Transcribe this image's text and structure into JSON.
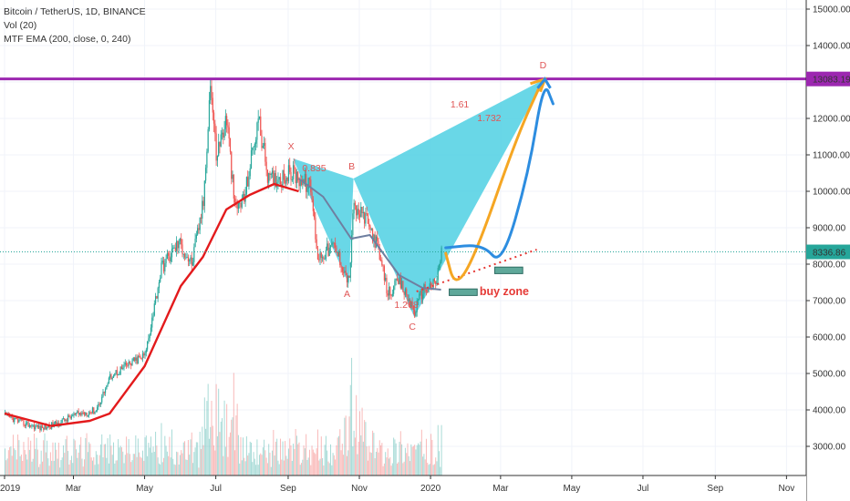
{
  "legend": {
    "symbol": "Bitcoin / TetherUS, 1D, BINANCE",
    "volume": "Vol (20)",
    "ema": "MTF EMA (200, close, 0, 240)"
  },
  "price_tags": {
    "resistance": "13083.19",
    "last": "8336.86"
  },
  "colors": {
    "candle_up": "#26a69a",
    "candle_down": "#ef5350",
    "ema": "#e31a1c",
    "sma": "#6f7fa0",
    "pattern_fill": "#4fd0e3",
    "resistance": "#9c27b0",
    "orange_path": "#f5a623",
    "blue_path": "#2d8de0",
    "buy_zone": "#e53935"
  },
  "chart_data": {
    "type": "candlestick",
    "ylim": [
      2550,
      15250
    ],
    "y_ticks": [
      "15000.00",
      "14000.00",
      "13000.00",
      "12000.00",
      "11000.00",
      "10000.00",
      "9000.00",
      "8000.00",
      "7000.00",
      "6000.00",
      "5000.00",
      "4000.00",
      "3000.00"
    ],
    "x_ticks": [
      "2019",
      "Mar",
      "May",
      "Jul",
      "Sep",
      "Nov",
      "2020",
      "Mar",
      "May",
      "Jul",
      "Sep",
      "Nov"
    ],
    "price_path": [
      [
        "2019-01-01",
        3850
      ],
      [
        "2019-01-15",
        3650
      ],
      [
        "2019-02-01",
        3500
      ],
      [
        "2019-02-15",
        3620
      ],
      [
        "2019-03-01",
        3850
      ],
      [
        "2019-03-20",
        4000
      ],
      [
        "2019-04-02",
        4950
      ],
      [
        "2019-04-20",
        5300
      ],
      [
        "2019-05-01",
        5500
      ],
      [
        "2019-05-15",
        7900
      ],
      [
        "2019-05-30",
        8600
      ],
      [
        "2019-06-10",
        8000
      ],
      [
        "2019-06-20",
        9700
      ],
      [
        "2019-06-26",
        13000
      ],
      [
        "2019-07-01",
        11000
      ],
      [
        "2019-07-10",
        12000
      ],
      [
        "2019-07-17",
        9500
      ],
      [
        "2019-07-25",
        9800
      ],
      [
        "2019-08-06",
        12000
      ],
      [
        "2019-08-15",
        10300
      ],
      [
        "2019-08-25",
        10400
      ],
      [
        "2019-09-05",
        10500
      ],
      [
        "2019-09-20",
        10100
      ],
      [
        "2019-09-26",
        8200
      ],
      [
        "2019-10-10",
        8500
      ],
      [
        "2019-10-23",
        7500
      ],
      [
        "2019-10-26",
        9500
      ],
      [
        "2019-11-05",
        9300
      ],
      [
        "2019-11-15",
        8600
      ],
      [
        "2019-11-25",
        7200
      ],
      [
        "2019-12-05",
        7500
      ],
      [
        "2019-12-18",
        6700
      ],
      [
        "2019-12-25",
        7300
      ],
      [
        "2020-01-05",
        7450
      ],
      [
        "2020-01-10",
        8337
      ]
    ],
    "ema_path": [
      [
        "2019-01-01",
        3900
      ],
      [
        "2019-02-10",
        3560
      ],
      [
        "2019-03-15",
        3700
      ],
      [
        "2019-04-01",
        3900
      ],
      [
        "2019-05-01",
        5200
      ],
      [
        "2019-06-01",
        7400
      ],
      [
        "2019-06-20",
        8200
      ],
      [
        "2019-07-10",
        9500
      ],
      [
        "2019-07-30",
        9900
      ],
      [
        "2019-08-20",
        10200
      ],
      [
        "2019-09-10",
        10000
      ]
    ],
    "sma_path": [
      [
        "2019-09-10",
        10350
      ],
      [
        "2019-10-01",
        9850
      ],
      [
        "2019-10-25",
        8700
      ],
      [
        "2019-11-10",
        8800
      ],
      [
        "2019-12-05",
        7700
      ],
      [
        "2019-12-25",
        7350
      ],
      [
        "2020-01-10",
        7300
      ]
    ],
    "resistance_level": 13083.19,
    "last_price": 8336.86,
    "harmonic_pattern": {
      "points": [
        {
          "label": "X",
          "date": "2019-09-05",
          "price": 10900
        },
        {
          "label": "A",
          "date": "2019-10-23",
          "price": 7450
        },
        {
          "label": "B",
          "date": "2019-10-27",
          "price": 10350
        },
        {
          "label": "C",
          "date": "2019-12-18",
          "price": 6550
        },
        {
          "label": "D",
          "date": "2020-04-08",
          "price": 13080
        }
      ],
      "ratios": [
        {
          "text": "0.835",
          "date": "2019-09-13",
          "price": 10550
        },
        {
          "text": "1.61",
          "date": "2020-01-18",
          "price": 12300
        },
        {
          "text": "1.732",
          "date": "2020-02-10",
          "price": 11920
        },
        {
          "text": "1.268",
          "date": "2019-12-01",
          "price": 6800
        }
      ]
    },
    "projection": {
      "orange_path": [
        [
          "2020-01-14",
          8300
        ],
        [
          "2020-01-22",
          7350
        ],
        [
          "2020-02-08",
          8200
        ],
        [
          "2020-03-15",
          11500
        ],
        [
          "2020-04-06",
          13050
        ]
      ],
      "blue_path": [
        [
          "2020-01-14",
          8450
        ],
        [
          "2020-02-15",
          8550
        ],
        [
          "2020-03-02",
          7950
        ],
        [
          "2020-03-25",
          10500
        ],
        [
          "2020-04-07",
          13050
        ],
        [
          "2020-04-15",
          12400
        ]
      ],
      "trend_line": [
        [
          "2019-12-20",
          7250
        ],
        [
          "2020-04-01",
          8400
        ]
      ],
      "buy_zones": [
        {
          "date_start": "2020-01-17",
          "date_end": "2020-02-10",
          "price_top": 7320,
          "price_bottom": 7140
        },
        {
          "date_start": "2020-02-25",
          "date_end": "2020-03-20",
          "price_top": 7920,
          "price_bottom": 7740
        }
      ],
      "buy_zone_label": "buy zone"
    }
  }
}
